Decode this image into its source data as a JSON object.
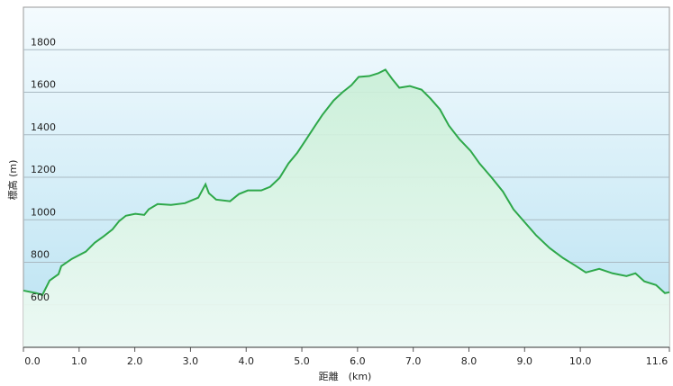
{
  "chart_data": {
    "type": "area",
    "x_label": "距離　(km)",
    "y_label": "標高 (m)",
    "x": [
      0,
      0.23,
      0.34,
      0.47,
      0.63,
      0.68,
      0.87,
      1.12,
      1.28,
      1.44,
      1.6,
      1.72,
      1.84,
      2.01,
      2.17,
      2.25,
      2.41,
      2.65,
      2.9,
      3.14,
      3.27,
      3.33,
      3.46,
      3.71,
      3.87,
      4.03,
      4.27,
      4.43,
      4.6,
      4.76,
      4.92,
      5.08,
      5.24,
      5.37,
      5.57,
      5.73,
      5.89,
      6.02,
      6.21,
      6.37,
      6.5,
      6.62,
      6.75,
      6.94,
      7.15,
      7.31,
      7.48,
      7.64,
      7.83,
      8.03,
      8.19,
      8.4,
      8.61,
      8.8,
      9.0,
      9.21,
      9.45,
      9.69,
      9.9,
      10.1,
      10.34,
      10.58,
      10.83,
      10.99,
      11.15,
      11.36,
      11.52,
      11.6
    ],
    "values": [
      667,
      655,
      646,
      714,
      744,
      782,
      816,
      850,
      892,
      922,
      955,
      994,
      1019,
      1028,
      1023,
      1049,
      1074,
      1070,
      1078,
      1104,
      1167,
      1125,
      1095,
      1087,
      1121,
      1138,
      1138,
      1155,
      1197,
      1265,
      1316,
      1379,
      1443,
      1494,
      1561,
      1600,
      1633,
      1672,
      1676,
      1689,
      1706,
      1663,
      1621,
      1629,
      1612,
      1570,
      1519,
      1443,
      1379,
      1324,
      1265,
      1201,
      1133,
      1049,
      989,
      926,
      867,
      820,
      786,
      752,
      769,
      748,
      735,
      748,
      710,
      693,
      655,
      659
    ],
    "color": "#2ea84a",
    "fill": "#dff7e6",
    "xlim": [
      0,
      11.6
    ],
    "ylim": [
      400,
      2000
    ],
    "xticks": [
      {
        "value": 0,
        "label": "0.0"
      },
      {
        "value": 1,
        "label": "1.0"
      },
      {
        "value": 2,
        "label": "2.0"
      },
      {
        "value": 3,
        "label": "3.0"
      },
      {
        "value": 4,
        "label": "4.0"
      },
      {
        "value": 5,
        "label": "5.0"
      },
      {
        "value": 6,
        "label": "6.0"
      },
      {
        "value": 7,
        "label": "7.0"
      },
      {
        "value": 8,
        "label": "8.0"
      },
      {
        "value": 9,
        "label": "9.0"
      },
      {
        "value": 10,
        "label": "10.0"
      },
      {
        "value": 11.6,
        "label": "11.6"
      }
    ],
    "yticks": [
      600,
      800,
      1000,
      1200,
      1400,
      1600,
      1800
    ],
    "grid": true
  }
}
